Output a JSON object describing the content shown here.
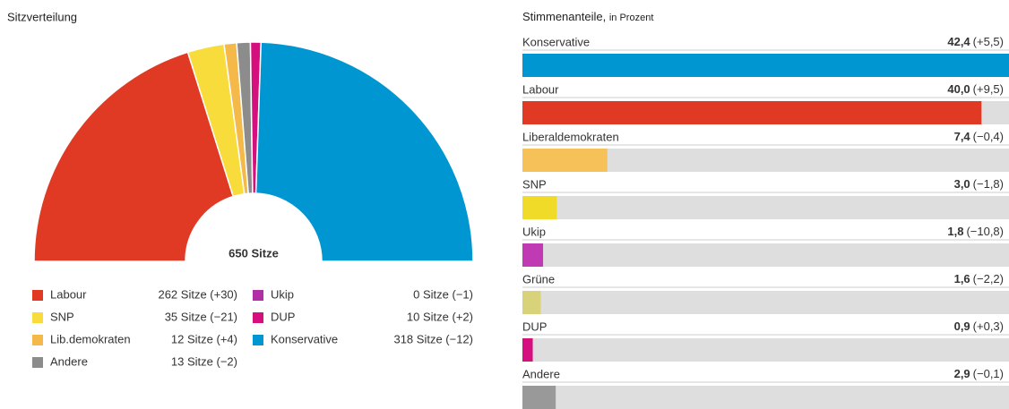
{
  "chart_data": [
    {
      "type": "pie",
      "title": "Sitzverteilung",
      "center_label": "650 Sitze",
      "categories": [
        "Labour",
        "SNP",
        "Lib.demokraten",
        "Andere",
        "Ukip",
        "DUP",
        "Konservative"
      ],
      "values": [
        262,
        35,
        12,
        13,
        0,
        10,
        318
      ],
      "value_labels": [
        "262 Sitze (+30)",
        "35 Sitze (−21)",
        "12 Sitze (+4)",
        "13 Sitze (−2)",
        "0 Sitze (−1)",
        "10 Sitze (+2)",
        "318 Sitze (−12)"
      ],
      "colors": [
        "#e03a24",
        "#f7dc3c",
        "#f5b94a",
        "#8c8c8c",
        "#b02ea6",
        "#d60f7e",
        "#0096d1"
      ]
    },
    {
      "type": "bar",
      "orientation": "horizontal",
      "title": "Stimmenanteile,",
      "subtitle": "in Prozent",
      "categories": [
        "Konservative",
        "Labour",
        "Liberaldemokraten",
        "SNP",
        "Ukip",
        "Grüne",
        "DUP",
        "Andere"
      ],
      "values": [
        42.4,
        40.0,
        7.4,
        3.0,
        1.8,
        1.6,
        0.9,
        2.9
      ],
      "value_labels": [
        "42,4",
        "40,0",
        "7,4",
        "3,0",
        "1,8",
        "1,6",
        "0,9",
        "2,9"
      ],
      "change_labels": [
        "(+5,5)",
        "(+9,5)",
        "(−0,4)",
        "(−1,8)",
        "(−10,8)",
        "(−2,2)",
        "(+0,3)",
        "(−0,1)"
      ],
      "colors": [
        "#0096d1",
        "#e03a24",
        "#f7c15a",
        "#f0dc28",
        "#c03ab4",
        "#d8d27a",
        "#d60f7e",
        "#999999"
      ],
      "xlim": [
        0,
        42.4
      ],
      "track_color": "#dedede"
    }
  ]
}
